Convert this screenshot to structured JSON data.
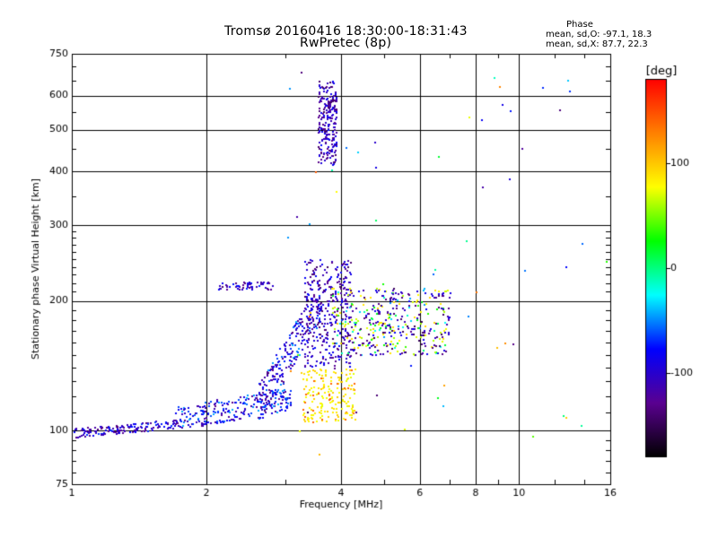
{
  "header": {
    "title_line1": "Tromsø 20160416 18:30:00-18:31:43",
    "title_line2": "RwPretec (8p)"
  },
  "phase_info": {
    "heading": "Phase",
    "line_o": "mean, sd,O: -97.1, 18.3",
    "line_x": "mean, sd,X:  87.7, 22.3"
  },
  "chart_data": {
    "type": "scatter",
    "xlabel": "Frequency [MHz]",
    "ylabel": "Stationary phase Virtual Height [km]",
    "x_scale": "log",
    "y_scale": "log",
    "xlim": [
      1,
      16
    ],
    "ylim": [
      75,
      750
    ],
    "x_ticks": [
      {
        "value": 1,
        "label": "1"
      },
      {
        "value": 2,
        "label": "2"
      },
      {
        "value": 4,
        "label": "4"
      },
      {
        "value": 6,
        "label": "6"
      },
      {
        "value": 8,
        "label": "8"
      },
      {
        "value": 10,
        "label": "10"
      },
      {
        "value": 16,
        "label": "16"
      }
    ],
    "x_gridlines": [
      2,
      4,
      6,
      8,
      10
    ],
    "y_ticks": [
      {
        "value": 75,
        "label": "75"
      },
      {
        "value": 100,
        "label": "100"
      },
      {
        "value": 200,
        "label": "200"
      },
      {
        "value": 300,
        "label": "300"
      },
      {
        "value": 400,
        "label": "400"
      },
      {
        "value": 500,
        "label": "500"
      },
      {
        "value": 600,
        "label": "600"
      },
      {
        "value": 750,
        "label": "750"
      }
    ],
    "y_gridlines": [
      100,
      200,
      300,
      400,
      500,
      600
    ],
    "grid": true,
    "colorbar": {
      "label": "[deg]",
      "range": [
        -180,
        180
      ],
      "ticks": [
        100,
        0,
        -100
      ],
      "tick_labels": [
        "100",
        "0",
        "-100"
      ],
      "colors": [
        "#000000",
        "#5a0090",
        "#0000ff",
        "#00ffff",
        "#00ff00",
        "#ffff00",
        "#ff8000",
        "#ff0000"
      ]
    },
    "clusters": [
      {
        "name": "ground_trace",
        "freq": [
          1.0,
          1.75
        ],
        "height": [
          97,
          108
        ],
        "phase": -100,
        "n": 160
      },
      {
        "name": "lower_trace",
        "freq": [
          1.7,
          3.1
        ],
        "height": [
          105,
          130
        ],
        "phase": -95,
        "n": 230
      },
      {
        "name": "rise",
        "freq": [
          2.6,
          3.6
        ],
        "height": [
          115,
          205
        ],
        "phase": -105,
        "n": 240
      },
      {
        "name": "dense_column",
        "freq": [
          3.3,
          4.2
        ],
        "height": [
          140,
          250
        ],
        "phase": -110,
        "n": 330
      },
      {
        "name": "high_column",
        "freq": [
          3.55,
          3.9
        ],
        "height": [
          415,
          650
        ],
        "phase": -110,
        "n": 230
      },
      {
        "name": "yellow_echo",
        "freq": [
          3.25,
          4.3
        ],
        "height": [
          105,
          140
        ],
        "phase": 85,
        "n": 190
      },
      {
        "name": "mixed_echo",
        "freq": [
          3.8,
          6.9
        ],
        "height": [
          150,
          215
        ],
        "phase": 40,
        "n": 190
      },
      {
        "name": "blue_echo",
        "freq": [
          4.2,
          7.0
        ],
        "height": [
          150,
          215
        ],
        "phase": -115,
        "n": 200
      },
      {
        "name": "f_trace",
        "freq": [
          2.1,
          2.8
        ],
        "height": [
          213,
          222
        ],
        "phase": -105,
        "n": 55
      },
      {
        "name": "sparse",
        "freq": [
          3.0,
          16.0
        ],
        "height": [
          80,
          700
        ],
        "phase": 0,
        "n": 60
      }
    ]
  }
}
